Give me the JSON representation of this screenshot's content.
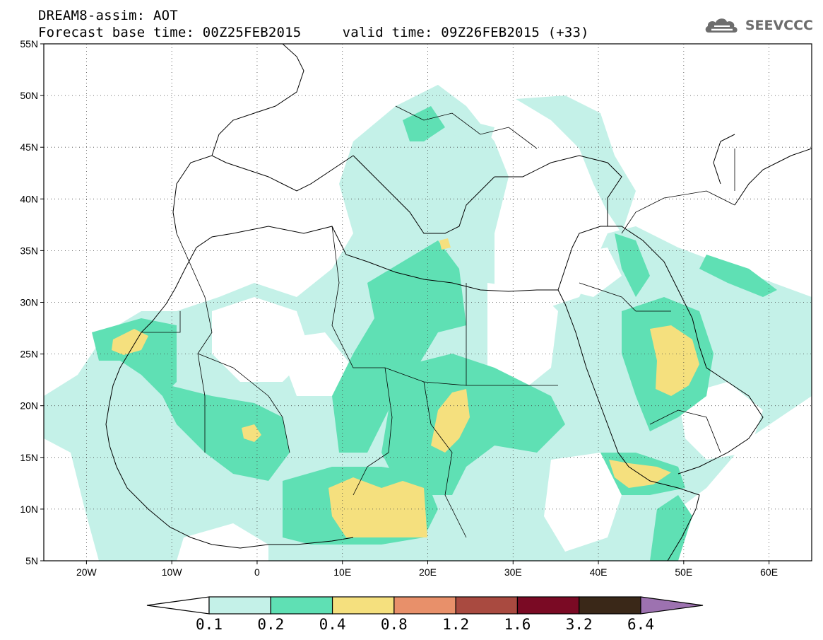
{
  "title": {
    "line1": "DREAM8-assim: AOT",
    "line2": "Forecast base time: 00Z25FEB2015     valid time: 09Z26FEB2015 (+33)"
  },
  "logo": {
    "text": "SEEVCCC",
    "icon": "cloud-logo-icon",
    "color": "#6d6d6d"
  },
  "map": {
    "lon_range": [
      -25,
      65
    ],
    "lat_range": [
      5,
      55
    ],
    "lat_labels": [
      "55N",
      "50N",
      "45N",
      "40N",
      "35N",
      "30N",
      "25N",
      "20N",
      "15N",
      "10N",
      "5N"
    ],
    "lat_values": [
      55,
      50,
      45,
      40,
      35,
      30,
      25,
      20,
      15,
      10,
      5
    ],
    "lon_labels": [
      "20W",
      "10W",
      "0",
      "10E",
      "20E",
      "30E",
      "40E",
      "50E",
      "60E"
    ],
    "lon_values": [
      -20,
      -10,
      0,
      10,
      20,
      30,
      40,
      50,
      60
    ],
    "grid": "dotted",
    "field": "AOT"
  },
  "colorbar": {
    "labels": [
      "0.1",
      "0.2",
      "0.4",
      "0.8",
      "1.2",
      "1.6",
      "3.2",
      "6.4"
    ],
    "colors": [
      "#ffffff",
      "#c4f1e8",
      "#5fe0b4",
      "#f5e07e",
      "#e8906a",
      "#a94a40",
      "#7a0a24",
      "#3a2818",
      "#9d72b0"
    ]
  }
}
